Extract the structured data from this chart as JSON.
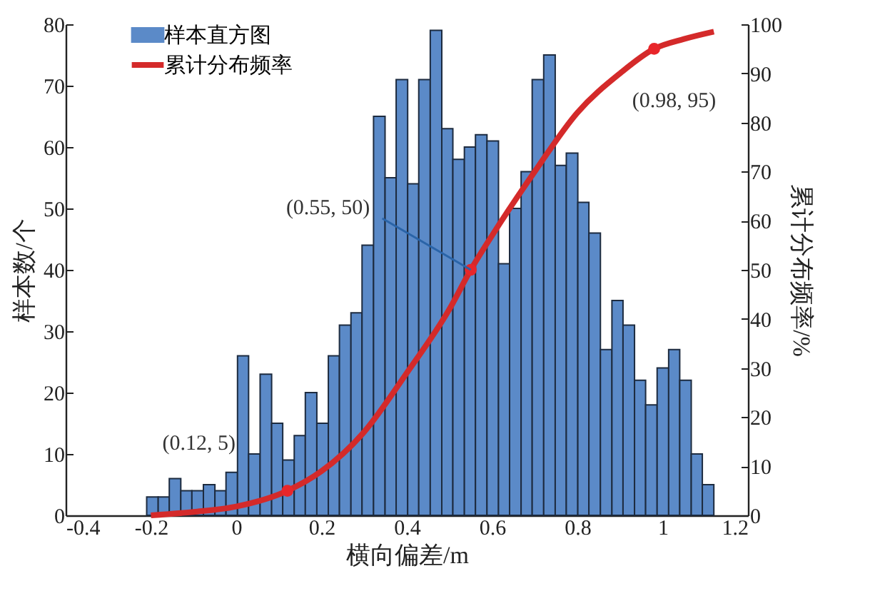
{
  "chart_data": {
    "type": "histogram",
    "xlabel": "横向偏差/m",
    "ylabel": "样本数/个",
    "y2label": "累计分布频率/%",
    "bins": [
      -0.21,
      -0.183,
      -0.157,
      -0.13,
      -0.104,
      -0.077,
      -0.05,
      -0.024,
      0.003,
      0.029,
      0.056,
      0.083,
      0.109,
      0.136,
      0.162,
      0.189,
      0.216,
      0.242,
      0.269,
      0.295,
      0.322,
      0.349,
      0.375,
      0.402,
      0.428,
      0.455,
      0.482,
      0.508,
      0.535,
      0.561,
      0.588,
      0.615,
      0.641,
      0.668,
      0.694,
      0.721,
      0.748,
      0.774,
      0.801,
      0.827,
      0.854,
      0.881,
      0.907,
      0.934,
      0.96,
      0.987,
      1.014,
      1.04,
      1.067,
      1.093,
      1.12
    ],
    "series": [
      {
        "name": "样本直方图",
        "color": "#5b8ac8",
        "values": [
          3,
          3,
          6,
          4,
          4,
          5,
          4,
          7,
          26,
          10,
          23,
          15,
          9,
          13,
          20,
          15,
          26,
          31,
          33,
          44,
          65,
          55,
          71,
          54,
          71,
          79,
          63,
          58,
          60,
          62,
          61,
          41,
          50,
          56,
          71,
          75,
          57,
          59,
          51,
          46,
          27,
          35,
          31,
          22,
          18,
          24,
          27,
          22,
          10,
          5
        ]
      },
      {
        "name": "累计分布频率",
        "type": "line",
        "axis": "y2",
        "color": "#d42a2a",
        "x": [
          -0.2,
          -0.1,
          0,
          0.12,
          0.2,
          0.3,
          0.4,
          0.5,
          0.55,
          0.6,
          0.7,
          0.8,
          0.9,
          0.98,
          1.05,
          1.12
        ],
        "values": [
          0,
          0.7,
          1.8,
          5,
          9,
          17,
          29,
          42,
          50,
          57,
          70,
          82,
          90,
          95,
          97,
          98.5
        ]
      },
      {
        "type": "scatter",
        "axis": "y2",
        "color": "#e8262a",
        "x": [
          0.12,
          0.55,
          0.98
        ],
        "values": [
          5,
          50,
          95
        ]
      }
    ],
    "annotations": [
      "(0.12, 5)",
      {
        "text": "(0.55, 50)",
        "x": 0.55,
        "y": 40
      },
      "(0.98, 95)"
    ],
    "xlim": [
      -0.4,
      1.2
    ],
    "xticks": [
      -0.4,
      -0.2,
      0,
      0.2,
      0.4,
      0.6,
      0.8,
      1,
      1.2
    ],
    "ylim": [
      0,
      80
    ],
    "yticks": [
      0,
      10,
      20,
      30,
      40,
      50,
      60,
      70,
      80
    ],
    "y2lim": [
      0,
      100
    ],
    "y2ticks": [
      0,
      10,
      20,
      30,
      40,
      50,
      60,
      70,
      80,
      90,
      100
    ],
    "legend": "top left",
    "grid": false
  }
}
